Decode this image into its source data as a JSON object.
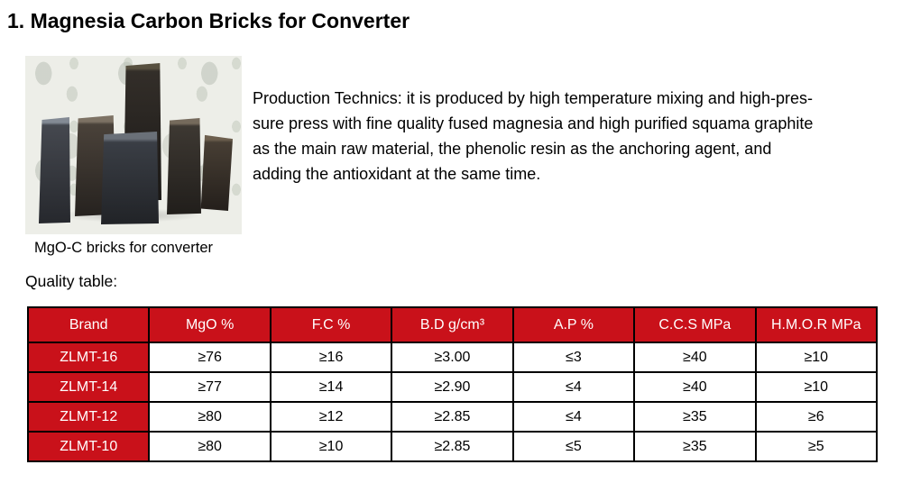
{
  "title": "1. Magnesia Carbon Bricks for Converter",
  "photo": {
    "caption": "MgO-C bricks for converter"
  },
  "paragraph": {
    "lines": [
      "Production Technics: it is produced by high temperature mixing and high-pres-",
      "sure press with fine quality fused magnesia and high purified squama graphite",
      "as the main raw material, the phenolic resin as the anchoring agent, and",
      "adding the antioxidant at the same time."
    ]
  },
  "quality_table_label": "Quality table:",
  "table": {
    "headers": [
      "Brand",
      "MgO %",
      "F.C %",
      "B.D g/cm³",
      "A.P %",
      "C.C.S MPa",
      "H.M.O.R MPa"
    ],
    "rows": [
      {
        "brand": "ZLMT-16",
        "values": [
          "≥76",
          "≥16",
          "≥3.00",
          "≤3",
          "≥40",
          "≥10"
        ]
      },
      {
        "brand": "ZLMT-14",
        "values": [
          "≥77",
          "≥14",
          "≥2.90",
          "≤4",
          "≥40",
          "≥10"
        ]
      },
      {
        "brand": "ZLMT-12",
        "values": [
          "≥80",
          "≥12",
          "≥2.85",
          "≤4",
          "≥35",
          "≥6"
        ]
      },
      {
        "brand": "ZLMT-10",
        "values": [
          "≥80",
          "≥10",
          "≥2.85",
          "≤5",
          "≥35",
          "≥5"
        ]
      }
    ]
  },
  "colors": {
    "table_header_bg": "#C9111A",
    "table_border": "#000000",
    "header_text": "#FFFFFF",
    "body_text": "#000000",
    "page_bg": "#FFFFFF"
  }
}
